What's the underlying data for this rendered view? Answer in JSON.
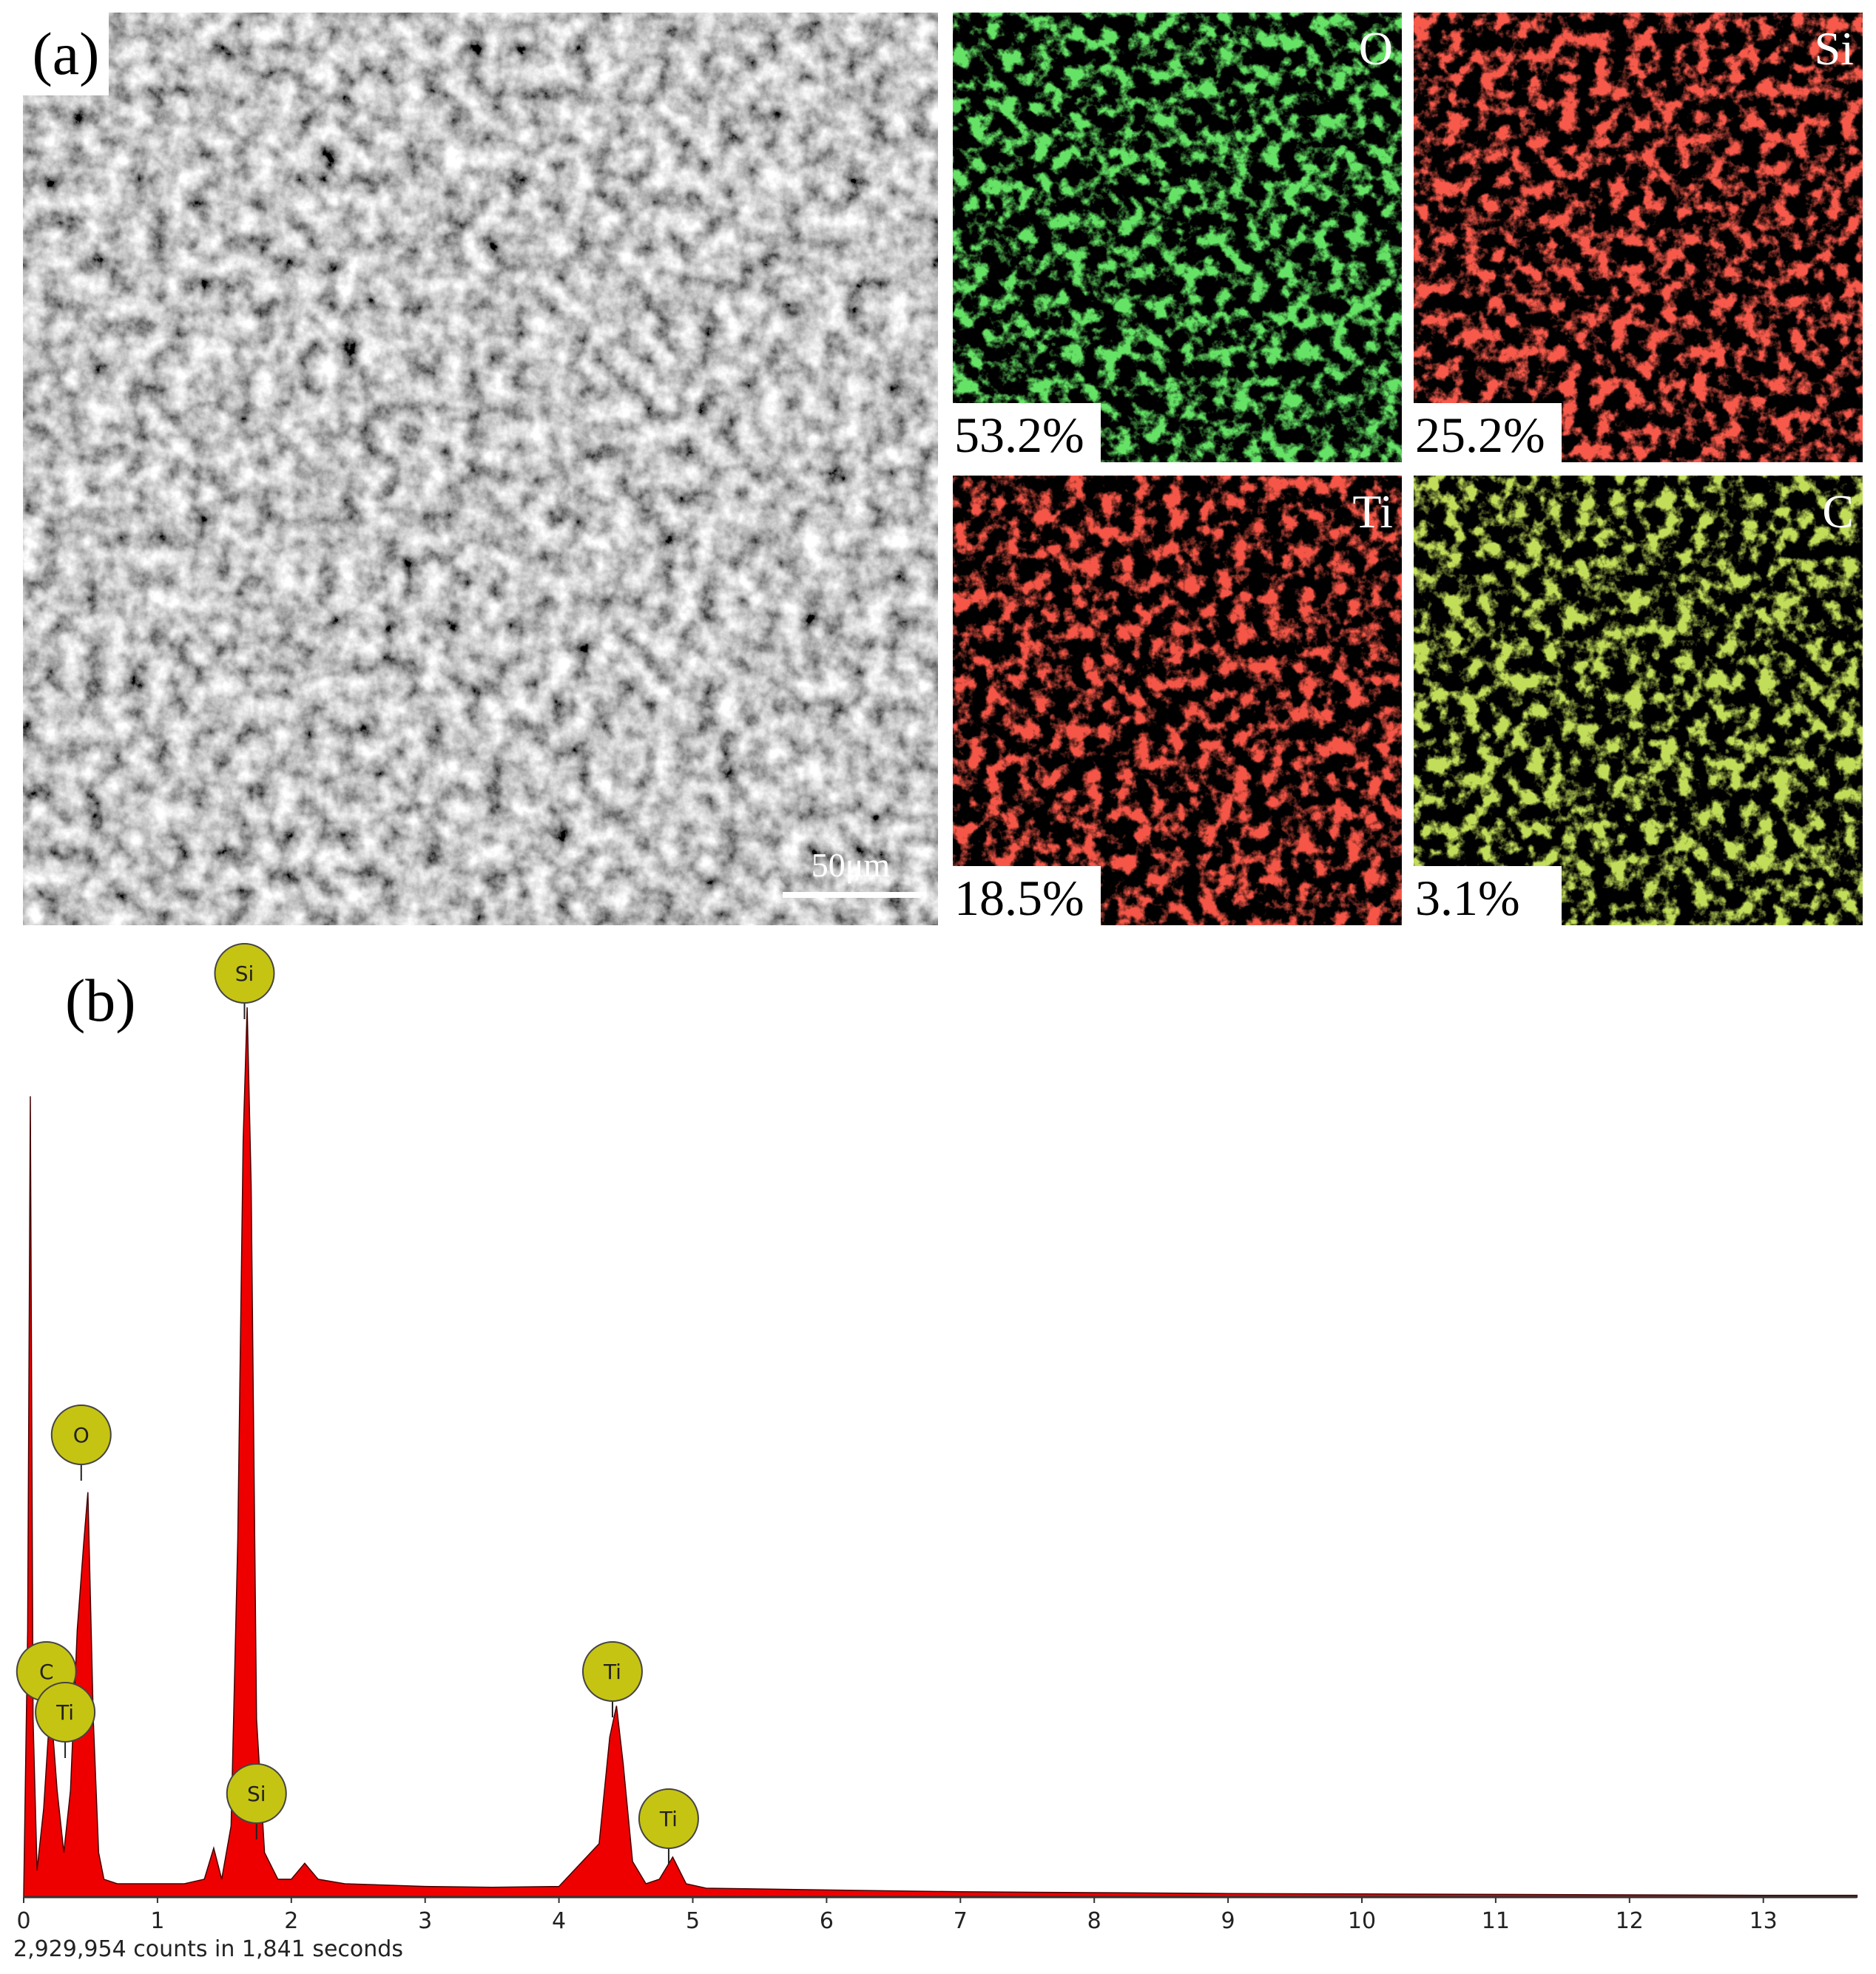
{
  "panel_a": {
    "label": "(a)",
    "scale_bar": "50μm",
    "maps": [
      {
        "element": "O",
        "fraction": "53.2%",
        "color": "#22c422"
      },
      {
        "element": "Si",
        "fraction": "25.2%",
        "color": "#ee1a12"
      },
      {
        "element": "Ti",
        "fraction": "18.5%",
        "color": "#e81810"
      },
      {
        "element": "C",
        "fraction": "3.1%",
        "color": "#8ab81a"
      }
    ]
  },
  "panel_b_label": "(b)",
  "chart_data": {
    "type": "area",
    "x": [
      0,
      0.03,
      0.05,
      0.07,
      0.1,
      0.15,
      0.2,
      0.25,
      0.3,
      0.35,
      0.4,
      0.45,
      0.48,
      0.52,
      0.56,
      0.6,
      0.7,
      0.8,
      1.0,
      1.2,
      1.35,
      1.42,
      1.48,
      1.55,
      1.6,
      1.64,
      1.67,
      1.7,
      1.74,
      1.8,
      1.9,
      2.0,
      2.1,
      2.2,
      2.4,
      3.0,
      3.5,
      4.0,
      4.3,
      4.38,
      4.43,
      4.48,
      4.55,
      4.65,
      4.75,
      4.85,
      4.95,
      5.1,
      6,
      7,
      8,
      9,
      10,
      11,
      12,
      13,
      13.7
    ],
    "values": [
      0,
      30,
      90,
      20,
      3,
      10,
      22,
      12,
      5,
      12,
      30,
      40,
      45.5,
      20,
      5,
      2,
      1.5,
      1.5,
      1.5,
      1.5,
      2,
      5.5,
      2,
      8,
      40,
      85,
      100,
      80,
      20,
      5,
      2,
      2,
      3.8,
      2,
      1.5,
      1.2,
      1.1,
      1.2,
      6,
      18,
      21.5,
      15,
      4,
      1.5,
      2,
      4.5,
      1.5,
      1,
      0.8,
      0.6,
      0.5,
      0.4,
      0.35,
      0.3,
      0.25,
      0.2,
      0.2
    ],
    "color": "#ee0000",
    "xlim": [
      0,
      13.7
    ],
    "ylim": [
      0,
      110
    ],
    "xticks": [
      0,
      1,
      2,
      3,
      4,
      5,
      6,
      7,
      8,
      9,
      10,
      11,
      12,
      13
    ],
    "annotations": [
      {
        "label": "C",
        "x": 0.17
      },
      {
        "label": "Ti",
        "x": 0.31
      },
      {
        "label": "O",
        "x": 0.43
      },
      {
        "label": "Si",
        "x": 1.65
      },
      {
        "label": "Si",
        "x": 1.74
      },
      {
        "label": "Ti",
        "x": 4.4
      },
      {
        "label": "Ti",
        "x": 4.82
      }
    ],
    "footnote": "2,929,954 counts in 1,841 seconds"
  }
}
